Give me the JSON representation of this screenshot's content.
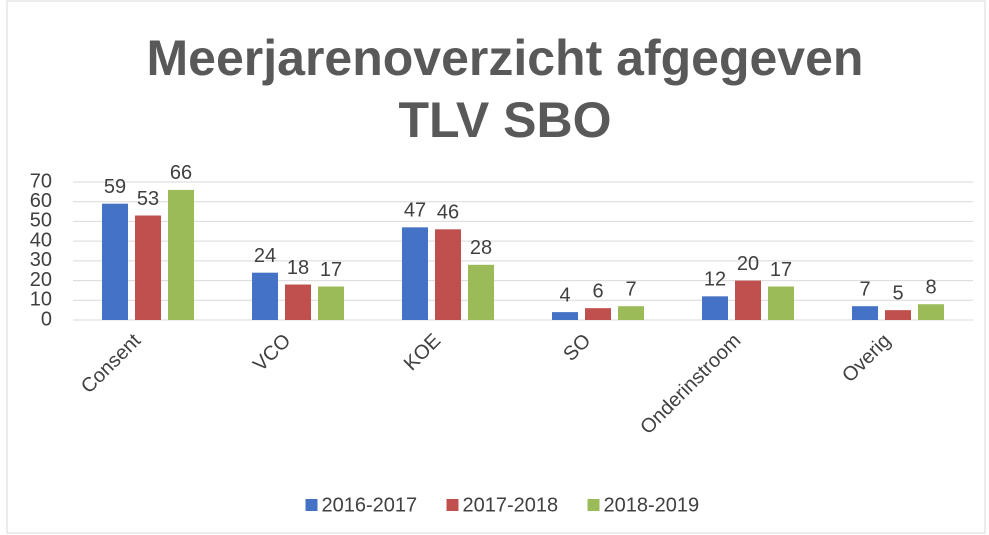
{
  "chart_data": {
    "type": "bar",
    "title": [
      "Meerjarenoverzicht afgegeven",
      "TLV SBO"
    ],
    "categories": [
      "Consent",
      "VCO",
      "KOE",
      "SO",
      "Onderinstroom",
      "Overig"
    ],
    "series": [
      {
        "name": "2016-2017",
        "color": "#4472c4",
        "values": [
          59,
          24,
          47,
          4,
          12,
          7
        ]
      },
      {
        "name": "2017-2018",
        "color": "#c0504d",
        "values": [
          53,
          18,
          46,
          6,
          20,
          5
        ]
      },
      {
        "name": "2018-2019",
        "color": "#9bbb59",
        "values": [
          66,
          17,
          28,
          7,
          17,
          8
        ]
      }
    ],
    "ylim": [
      0,
      70
    ],
    "yticks": [
      0,
      10,
      20,
      30,
      40,
      50,
      60,
      70
    ],
    "grid": true,
    "legend": "bottom"
  }
}
